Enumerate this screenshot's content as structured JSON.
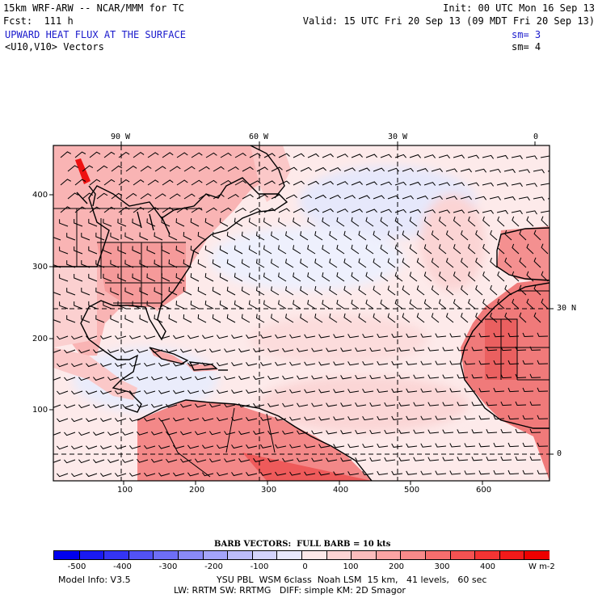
{
  "header": {
    "model_title": "15km WRF-ARW -- NCAR/MMM for TC",
    "init": "Init: 00 UTC Mon 16 Sep 13",
    "forecast": "Fcst:  111 h",
    "valid": "Valid: 15 UTC Fri 20 Sep 13 (09 MDT Fri 20 Sep 13)",
    "field_title": "UPWARD HEAT FLUX AT THE SURFACE",
    "field_smooth": "sm= 3",
    "vector_title": "<U10,V10> Vectors",
    "vector_smooth": "sm= 4"
  },
  "map": {
    "top_longitudes": [
      "90 W",
      "60 W",
      "30 W",
      "0"
    ],
    "right_latitudes": [
      "30 N",
      "0"
    ],
    "left_grid_ticks": [
      "400",
      "300",
      "200",
      "100"
    ],
    "bottom_grid_ticks": [
      "100",
      "200",
      "300",
      "400",
      "500",
      "600"
    ]
  },
  "barb_legend": "BARB VECTORS:  FULL BARB = 10 kts",
  "colorbar": {
    "labels": [
      "-500",
      "-400",
      "-300",
      "-200",
      "-100",
      "0",
      "100",
      "200",
      "300",
      "400"
    ],
    "unit": "W m-2",
    "colors": [
      "#0000ee",
      "#1a1af2",
      "#3434f4",
      "#5252f5",
      "#6e6ef6",
      "#8a8af8",
      "#a4a4fa",
      "#bcbcfb",
      "#d4d4fc",
      "#e9e9fd",
      "#fde9e9",
      "#fdd4d4",
      "#fbbcbc",
      "#faa4a4",
      "#f88a8a",
      "#f66e6e",
      "#f55252",
      "#f43434",
      "#f21a1a",
      "#ee0000"
    ]
  },
  "footer": {
    "model_info": "Model Info: V3.5",
    "physics_line1": "YSU PBL  WSM 6class  Noah LSM  15 km,   41 levels,   60 sec",
    "physics_line2": "LW: RRTM SW: RRTMG   DIFF: simple KM: 2D Smagor"
  }
}
